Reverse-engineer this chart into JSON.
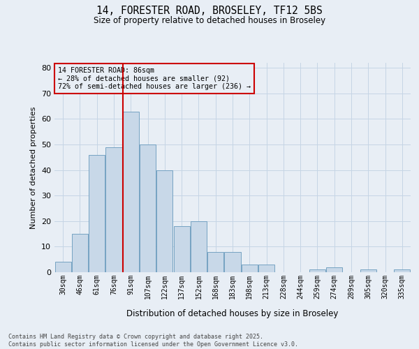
{
  "title_line1": "14, FORESTER ROAD, BROSELEY, TF12 5BS",
  "title_line2": "Size of property relative to detached houses in Broseley",
  "xlabel": "Distribution of detached houses by size in Broseley",
  "ylabel": "Number of detached properties",
  "categories": [
    "30sqm",
    "46sqm",
    "61sqm",
    "76sqm",
    "91sqm",
    "107sqm",
    "122sqm",
    "137sqm",
    "152sqm",
    "168sqm",
    "183sqm",
    "198sqm",
    "213sqm",
    "228sqm",
    "244sqm",
    "259sqm",
    "274sqm",
    "289sqm",
    "305sqm",
    "320sqm",
    "335sqm"
  ],
  "values": [
    4,
    15,
    46,
    49,
    63,
    50,
    40,
    18,
    20,
    8,
    8,
    3,
    3,
    0,
    0,
    1,
    2,
    0,
    1,
    0,
    1
  ],
  "bar_color": "#c8d8e8",
  "bar_edge_color": "#6699bb",
  "grid_color": "#c5d5e5",
  "background_color": "#e8eef5",
  "vline_color": "#cc0000",
  "annotation_text": "14 FORESTER ROAD: 86sqm\n← 28% of detached houses are smaller (92)\n72% of semi-detached houses are larger (236) →",
  "annotation_box_color": "#cc0000",
  "ylim": [
    0,
    82
  ],
  "yticks": [
    0,
    10,
    20,
    30,
    40,
    50,
    60,
    70,
    80
  ],
  "footer_line1": "Contains HM Land Registry data © Crown copyright and database right 2025.",
  "footer_line2": "Contains public sector information licensed under the Open Government Licence v3.0."
}
